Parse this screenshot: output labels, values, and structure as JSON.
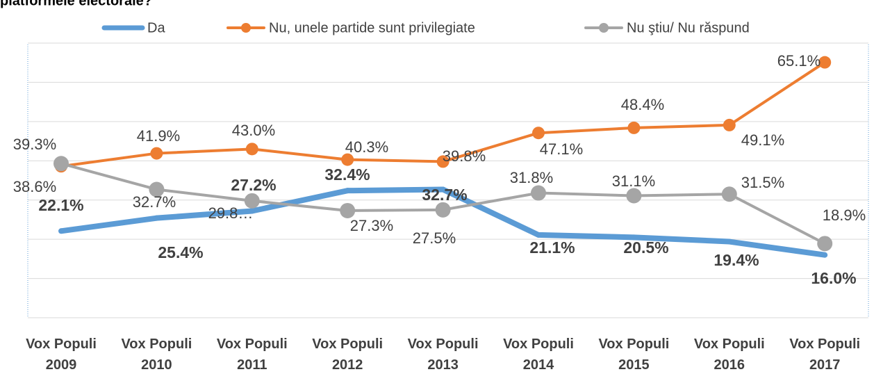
{
  "chart_data": {
    "type": "line",
    "title": "platformele electorale?",
    "categories": [
      "Vox Populi 2009",
      "Vox Populi 2010",
      "Vox Populi 2011",
      "Vox Populi 2012",
      "Vox Populi 2013",
      "Vox Populi 2014",
      "Vox Populi 2015",
      "Vox Populi 2016",
      "Vox Populi 2017"
    ],
    "series": [
      {
        "name": "Da",
        "color": "#5b9bd5",
        "values": [
          22.1,
          25.4,
          27.2,
          32.4,
          32.7,
          21.1,
          20.5,
          19.4,
          16.0
        ],
        "value_labels": [
          "22.1%",
          "25.4%",
          "27.2%",
          "32.4%",
          "32.7%",
          "21.1%",
          "20.5%",
          "19.4%",
          "16.0%"
        ]
      },
      {
        "name": "Nu, unele partide sunt privilegiate",
        "color": "#ed7d31",
        "values": [
          38.6,
          41.9,
          43.0,
          40.3,
          39.8,
          47.1,
          48.4,
          49.1,
          65.1
        ],
        "value_labels": [
          "38.6%",
          "41.9%",
          "43.0%",
          "40.3%",
          "39.8%",
          "47.1%",
          "48.4%",
          "49.1%",
          "65.1%"
        ]
      },
      {
        "name": "Nu ştiu/ Nu răspund",
        "color": "#a5a5a5",
        "values": [
          39.3,
          32.7,
          29.8,
          27.3,
          27.5,
          31.8,
          31.1,
          31.5,
          18.9
        ],
        "value_labels": [
          "39.3%",
          "32.7%",
          "29.8…",
          "27.3%",
          "27.5%",
          "31.8%",
          "31.1%",
          "31.5%",
          "18.9%"
        ]
      }
    ],
    "ylim": [
      0,
      70
    ],
    "yticks": [
      0,
      10,
      20,
      30,
      40,
      50,
      60,
      70
    ],
    "grid": true,
    "legend": "top"
  }
}
